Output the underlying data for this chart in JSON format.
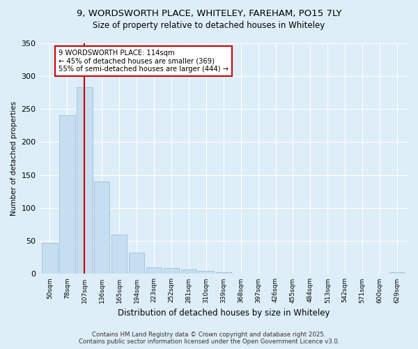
{
  "title1": "9, WORDSWORTH PLACE, WHITELEY, FAREHAM, PO15 7LY",
  "title2": "Size of property relative to detached houses in Whiteley",
  "xlabel": "Distribution of detached houses by size in Whiteley",
  "ylabel": "Number of detached properties",
  "categories": [
    "50sqm",
    "78sqm",
    "107sqm",
    "136sqm",
    "165sqm",
    "194sqm",
    "223sqm",
    "252sqm",
    "281sqm",
    "310sqm",
    "339sqm",
    "368sqm",
    "397sqm",
    "426sqm",
    "455sqm",
    "484sqm",
    "513sqm",
    "542sqm",
    "571sqm",
    "600sqm",
    "629sqm"
  ],
  "values": [
    47,
    241,
    283,
    140,
    60,
    32,
    10,
    9,
    7,
    5,
    3,
    0,
    0,
    0,
    0,
    0,
    0,
    0,
    0,
    0,
    3
  ],
  "bar_color": "#c5dff0",
  "bar_edge_color": "#a0bfd8",
  "vline_x": 2,
  "vline_color": "#cc0000",
  "annotation_text": "9 WORDSWORTH PLACE: 114sqm\n← 45% of detached houses are smaller (369)\n55% of semi-detached houses are larger (444) →",
  "annotation_box_facecolor": "#ffffff",
  "annotation_box_edgecolor": "#cc0000",
  "bg_color": "#ddeef8",
  "plot_bg_color": "#ddeef8",
  "footer_text": "Contains HM Land Registry data © Crown copyright and database right 2025.\nContains public sector information licensed under the Open Government Licence v3.0.",
  "ylim": [
    0,
    350
  ],
  "yticks": [
    0,
    50,
    100,
    150,
    200,
    250,
    300,
    350
  ],
  "title1_fontsize": 9.5,
  "title2_fontsize": 8.5
}
